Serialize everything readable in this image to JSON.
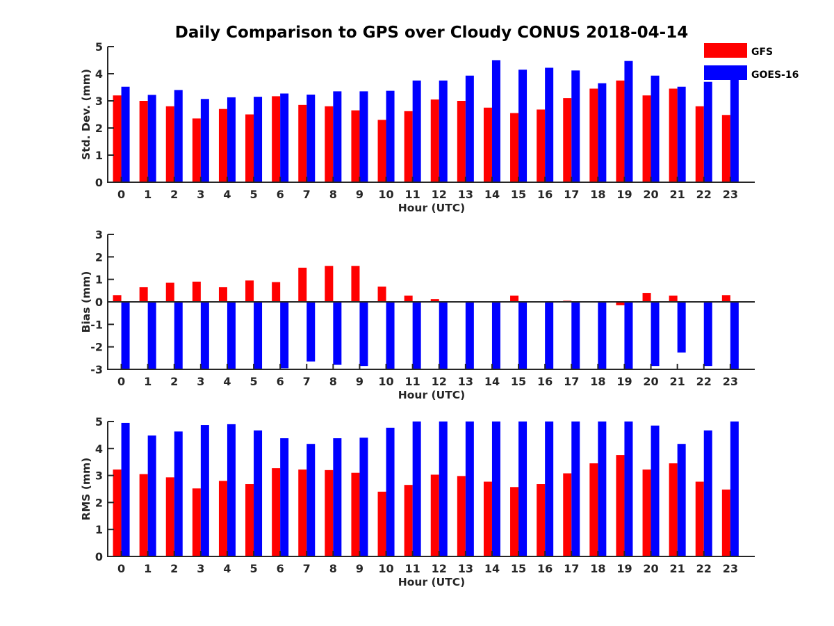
{
  "figure": {
    "title": "Daily Comparison to GPS over Cloudy CONUS 2018-04-14"
  },
  "legend": {
    "placement": "top-right",
    "entries": [
      {
        "name": "GFS",
        "color": "#ff0000"
      },
      {
        "name": "GOES-16",
        "color": "#0000ff"
      }
    ]
  },
  "chart_data": [
    {
      "type": "bar",
      "title": "Daily Comparison to GPS over Cloudy CONUS 2018-04-14",
      "xlabel": "Hour (UTC)",
      "ylabel": "Std. Dev. (mm)",
      "ylim": [
        0,
        5
      ],
      "yticks": [
        "0",
        "1",
        "2",
        "3",
        "4",
        "5"
      ],
      "grid": false,
      "categories": [
        "0",
        "1",
        "2",
        "3",
        "4",
        "5",
        "6",
        "7",
        "8",
        "9",
        "10",
        "11",
        "12",
        "13",
        "14",
        "15",
        "16",
        "17",
        "18",
        "19",
        "20",
        "21",
        "22",
        "23"
      ],
      "series": [
        {
          "name": "GFS",
          "color": "#ff0000",
          "values": [
            3.2,
            3.0,
            2.8,
            2.35,
            2.7,
            2.5,
            3.17,
            2.85,
            2.8,
            2.65,
            2.3,
            2.62,
            3.05,
            3.0,
            2.75,
            2.55,
            2.68,
            3.1,
            3.45,
            3.75,
            3.2,
            3.45,
            2.8,
            2.48
          ]
        },
        {
          "name": "GOES-16",
          "color": "#0000ff",
          "values": [
            3.52,
            3.22,
            3.4,
            3.07,
            3.13,
            3.15,
            3.27,
            3.23,
            3.35,
            3.35,
            3.37,
            3.75,
            3.75,
            3.93,
            4.5,
            4.15,
            4.22,
            4.12,
            3.65,
            4.47,
            3.93,
            3.52,
            3.7,
            3.8
          ]
        }
      ]
    },
    {
      "type": "bar",
      "xlabel": "Hour (UTC)",
      "ylabel": "Bias (mm)",
      "ylim": [
        -3,
        3
      ],
      "yticks": [
        "-3",
        "-2",
        "-1",
        "0",
        "1",
        "2",
        "3"
      ],
      "grid": false,
      "categories": [
        "0",
        "1",
        "2",
        "3",
        "4",
        "5",
        "6",
        "7",
        "8",
        "9",
        "10",
        "11",
        "12",
        "13",
        "14",
        "15",
        "16",
        "17",
        "18",
        "19",
        "20",
        "21",
        "22",
        "23"
      ],
      "series": [
        {
          "name": "GFS",
          "color": "#ff0000",
          "values": [
            0.3,
            0.65,
            0.85,
            0.9,
            0.65,
            0.95,
            0.88,
            1.52,
            1.6,
            1.6,
            0.68,
            0.28,
            0.12,
            0.0,
            0.03,
            0.28,
            0.0,
            0.05,
            0.0,
            -0.15,
            0.4,
            0.28,
            0.03,
            0.3
          ]
        },
        {
          "name": "GOES-16",
          "color": "#0000ff",
          "values": [
            -3.0,
            -3.0,
            -3.0,
            -3.0,
            -3.0,
            -3.0,
            -2.95,
            -2.65,
            -2.8,
            -2.85,
            -3.0,
            -3.0,
            -3.0,
            -3.0,
            -3.0,
            -3.0,
            -3.0,
            -2.98,
            -3.0,
            -3.0,
            -2.85,
            -2.25,
            -2.85,
            -3.0
          ]
        }
      ]
    },
    {
      "type": "bar",
      "xlabel": "Hour (UTC)",
      "ylabel": "RMS (mm)",
      "ylim": [
        0,
        5
      ],
      "yticks": [
        "0",
        "1",
        "2",
        "3",
        "4",
        "5"
      ],
      "grid": false,
      "categories": [
        "0",
        "1",
        "2",
        "3",
        "4",
        "5",
        "6",
        "7",
        "8",
        "9",
        "10",
        "11",
        "12",
        "13",
        "14",
        "15",
        "16",
        "17",
        "18",
        "19",
        "20",
        "21",
        "22",
        "23"
      ],
      "series": [
        {
          "name": "GFS",
          "color": "#ff0000",
          "values": [
            3.22,
            3.05,
            2.93,
            2.52,
            2.8,
            2.68,
            3.27,
            3.22,
            3.2,
            3.1,
            2.4,
            2.65,
            3.03,
            2.98,
            2.77,
            2.57,
            2.68,
            3.08,
            3.45,
            3.76,
            3.22,
            3.45,
            2.77,
            2.48
          ]
        },
        {
          "name": "GOES-16",
          "color": "#0000ff",
          "values": [
            4.95,
            4.48,
            4.63,
            4.87,
            4.9,
            4.67,
            4.38,
            4.17,
            4.38,
            4.4,
            4.77,
            5.0,
            5.0,
            5.0,
            5.0,
            5.0,
            5.0,
            5.0,
            5.0,
            5.0,
            4.85,
            4.17,
            4.67,
            5.0
          ]
        }
      ]
    }
  ]
}
